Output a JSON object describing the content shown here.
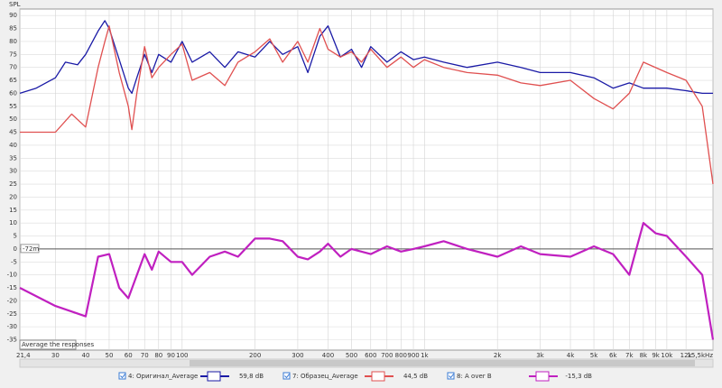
{
  "chart_data": {
    "type": "line",
    "y_label": "SPL",
    "xlim": [
      21.4,
      15500
    ],
    "ylim": [
      -39,
      92.5
    ],
    "log_x": true,
    "grid": true,
    "yticks": [
      90,
      85,
      80,
      75,
      70,
      65,
      60,
      55,
      50,
      45,
      40,
      35,
      30,
      25,
      20,
      15,
      10,
      5,
      0,
      -5,
      -10,
      -15,
      -20,
      -25,
      -30,
      -35
    ],
    "xticks": [
      {
        "value": 21.4,
        "label": "21,4"
      },
      30,
      40,
      50,
      60,
      70,
      80,
      90,
      100,
      200,
      300,
      400,
      500,
      600,
      700,
      800,
      900,
      {
        "value": 1000,
        "label": "1k"
      },
      {
        "value": 2000,
        "label": "2k"
      },
      {
        "value": 3000,
        "label": "3k"
      },
      {
        "value": 4000,
        "label": "4k"
      },
      {
        "value": 5000,
        "label": "5k"
      },
      {
        "value": 6000,
        "label": "6k"
      },
      {
        "value": 7000,
        "label": "7k"
      },
      {
        "value": 8000,
        "label": "8k"
      },
      {
        "value": 9000,
        "label": "9k"
      },
      {
        "value": 10000,
        "label": "10k"
      },
      {
        "value": 12000,
        "label": "12k"
      },
      {
        "value": 15500,
        "label": "15,5kHz"
      }
    ],
    "reference_line": 0,
    "reference_label": "-72m",
    "tooltip": "Average the responses",
    "series": [
      {
        "name": "4: Оригинал_Average",
        "color": "#1a1aa6",
        "readout": "59,8 dB",
        "x": [
          21.4,
          25,
          30,
          33,
          37,
          40,
          45,
          48,
          50,
          55,
          60,
          62,
          65,
          70,
          75,
          80,
          90,
          100,
          110,
          130,
          150,
          170,
          200,
          230,
          260,
          300,
          330,
          370,
          400,
          450,
          500,
          550,
          600,
          700,
          800,
          900,
          1000,
          1200,
          1500,
          2000,
          2500,
          3000,
          4000,
          5000,
          6000,
          7000,
          8000,
          10000,
          12000,
          14000,
          15500
        ],
        "values": [
          60,
          62,
          66,
          72,
          71,
          75,
          84,
          88,
          85,
          73,
          62,
          60,
          66,
          75,
          68,
          75,
          72,
          80,
          72,
          76,
          70,
          76,
          74,
          80,
          75,
          78,
          68,
          82,
          86,
          74,
          77,
          70,
          78,
          72,
          76,
          73,
          74,
          72,
          70,
          72,
          70,
          68,
          68,
          66,
          62,
          64,
          62,
          62,
          61,
          60,
          60
        ]
      },
      {
        "name": "7: Образец_Average",
        "color": "#e05050",
        "readout": "44,5 dB",
        "x": [
          21.4,
          30,
          35,
          40,
          45,
          48,
          50,
          55,
          60,
          62,
          65,
          70,
          75,
          80,
          90,
          100,
          110,
          130,
          150,
          170,
          200,
          230,
          260,
          300,
          330,
          370,
          400,
          450,
          500,
          550,
          600,
          700,
          800,
          900,
          1000,
          1200,
          1500,
          2000,
          2500,
          3000,
          4000,
          5000,
          6000,
          7000,
          8000,
          10000,
          12000,
          14000,
          15500
        ],
        "values": [
          45,
          45,
          52,
          47,
          70,
          80,
          86,
          68,
          55,
          46,
          60,
          78,
          66,
          70,
          75,
          79,
          65,
          68,
          63,
          72,
          76,
          81,
          72,
          80,
          72,
          85,
          77,
          74,
          76,
          72,
          77,
          70,
          74,
          70,
          73,
          70,
          68,
          67,
          64,
          63,
          65,
          58,
          54,
          60,
          72,
          68,
          65,
          55,
          25
        ]
      },
      {
        "name": "8: A over B",
        "color": "#c020c0",
        "readout": "-15,3 dB",
        "x": [
          21.4,
          30,
          40,
          45,
          50,
          55,
          60,
          70,
          75,
          80,
          90,
          100,
          110,
          130,
          150,
          170,
          200,
          230,
          260,
          300,
          330,
          370,
          400,
          450,
          500,
          600,
          700,
          800,
          900,
          1000,
          1200,
          1500,
          2000,
          2500,
          3000,
          4000,
          5000,
          6000,
          7000,
          8000,
          9000,
          10000,
          12000,
          14000,
          15500
        ],
        "values": [
          -15,
          -22,
          -26,
          -3,
          -2,
          -15,
          -19,
          -2,
          -8,
          -1,
          -5,
          -5,
          -10,
          -3,
          -1,
          -3,
          4,
          4,
          3,
          -3,
          -4,
          -1,
          2,
          -3,
          0,
          -2,
          1,
          -1,
          0,
          1,
          3,
          0,
          -3,
          1,
          -2,
          -3,
          1,
          -2,
          -10,
          10,
          6,
          5,
          -3,
          -10,
          -35
        ]
      }
    ]
  }
}
